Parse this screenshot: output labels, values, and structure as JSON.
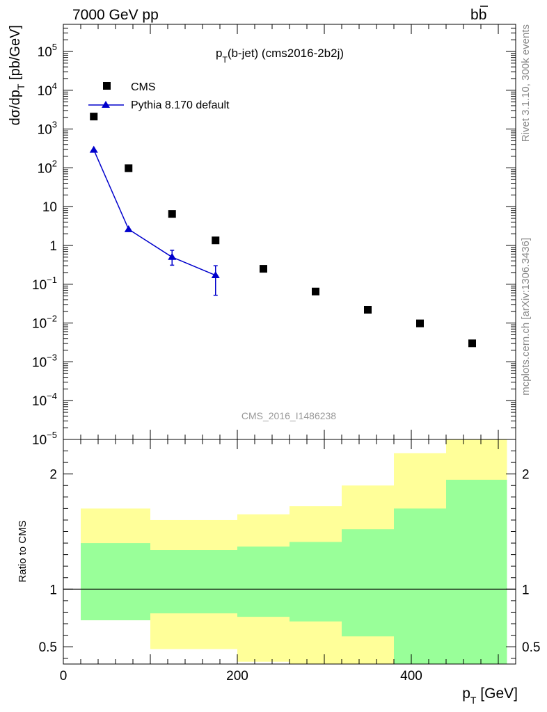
{
  "header": {
    "left": "7000 GeV pp",
    "right_main": "b",
    "right_bar": "b"
  },
  "side": {
    "rivet": "Rivet 3.1.10,  300k events",
    "mcplots": "mcplots.cern.ch [arXiv:1306.3436]"
  },
  "colors": {
    "mc": "#0000cc",
    "data": "#000000",
    "band_outer": "#ffff99",
    "band_inner": "#99ff99"
  },
  "chart_data": [
    {
      "type": "scatter",
      "scale": "log-y",
      "title_main": "p",
      "title_sub": "T",
      "title_rest": "(b-jet) (cms2016-2b2j)",
      "ylabel_main": "dσ/dp",
      "ylabel_sub": "T",
      "ylabel_rest": " [pb/GeV]",
      "xlim": [
        0,
        520
      ],
      "ylim": [
        1e-05,
        500000
      ],
      "ytick_labels": [
        {
          "value": 100000,
          "base": "10",
          "exp": "5"
        },
        {
          "value": 10000,
          "base": "10",
          "exp": "4"
        },
        {
          "value": 1000,
          "base": "10",
          "exp": "3"
        },
        {
          "value": 100,
          "base": "10",
          "exp": "2"
        },
        {
          "value": 10,
          "base": "10",
          "exp": ""
        },
        {
          "value": 1,
          "base": "1",
          "exp": ""
        },
        {
          "value": 0.1,
          "base": "10",
          "exp": "−1"
        },
        {
          "value": 0.01,
          "base": "10",
          "exp": "−2"
        },
        {
          "value": 0.001,
          "base": "10",
          "exp": "−3"
        },
        {
          "value": 0.0001,
          "base": "10",
          "exp": "−4"
        },
        {
          "value": 1e-05,
          "base": "10",
          "exp": "−5"
        }
      ],
      "watermark": "CMS_2016_I1486238",
      "legend_position": "top-left",
      "series": [
        {
          "name": "CMS",
          "marker": "square",
          "x": [
            35,
            75,
            125,
            175,
            230,
            290,
            350,
            410,
            470
          ],
          "y": [
            2100,
            98,
            6.5,
            1.35,
            0.25,
            0.065,
            0.022,
            0.0098,
            0.003
          ]
        },
        {
          "name": "Pythia 8.170 default",
          "marker": "triangle",
          "x": [
            35,
            75,
            125,
            175
          ],
          "y": [
            290,
            2.6,
            0.5,
            0.17
          ],
          "err_low": [
            0,
            0,
            0.19,
            0.118
          ],
          "err_high": [
            0,
            0,
            0.25,
            0.13
          ]
        }
      ]
    },
    {
      "type": "area",
      "ylabel": "Ratio to CMS",
      "xlabel_main": "p",
      "xlabel_sub": "T",
      "xlabel_rest": " [GeV]",
      "xlim": [
        0,
        520
      ],
      "ylim": [
        0.35,
        2.3
      ],
      "reference_line": 1,
      "xtick_labels": [
        {
          "value": 0,
          "label": "0"
        },
        {
          "value": 200,
          "label": "200"
        },
        {
          "value": 400,
          "label": "400"
        }
      ],
      "ytick_labels": [
        {
          "value": 0.5,
          "label": "0.5"
        },
        {
          "value": 1,
          "label": "1"
        },
        {
          "value": 2,
          "label": "2"
        }
      ],
      "bins": [
        {
          "x0": 20,
          "x1": 100,
          "outer_lo": 0.73,
          "outer_hi": 1.7,
          "inner_lo": 0.73,
          "inner_hi": 1.4
        },
        {
          "x0": 100,
          "x1": 200,
          "outer_lo": 0.48,
          "outer_hi": 1.6,
          "inner_lo": 0.79,
          "inner_hi": 1.34
        },
        {
          "x0": 200,
          "x1": 260,
          "outer_lo": 0.37,
          "outer_hi": 1.65,
          "inner_lo": 0.76,
          "inner_hi": 1.37
        },
        {
          "x0": 260,
          "x1": 320,
          "outer_lo": 0.35,
          "outer_hi": 1.72,
          "inner_lo": 0.72,
          "inner_hi": 1.41
        },
        {
          "x0": 320,
          "x1": 380,
          "outer_lo": 0.35,
          "outer_hi": 1.9,
          "inner_lo": 0.59,
          "inner_hi": 1.52
        },
        {
          "x0": 380,
          "x1": 440,
          "outer_lo": 0.35,
          "outer_hi": 2.18,
          "inner_lo": 0.35,
          "inner_hi": 1.7
        },
        {
          "x0": 440,
          "x1": 510,
          "outer_lo": 0.35,
          "outer_hi": 2.3,
          "inner_lo": 0.35,
          "inner_hi": 1.95
        }
      ]
    }
  ]
}
